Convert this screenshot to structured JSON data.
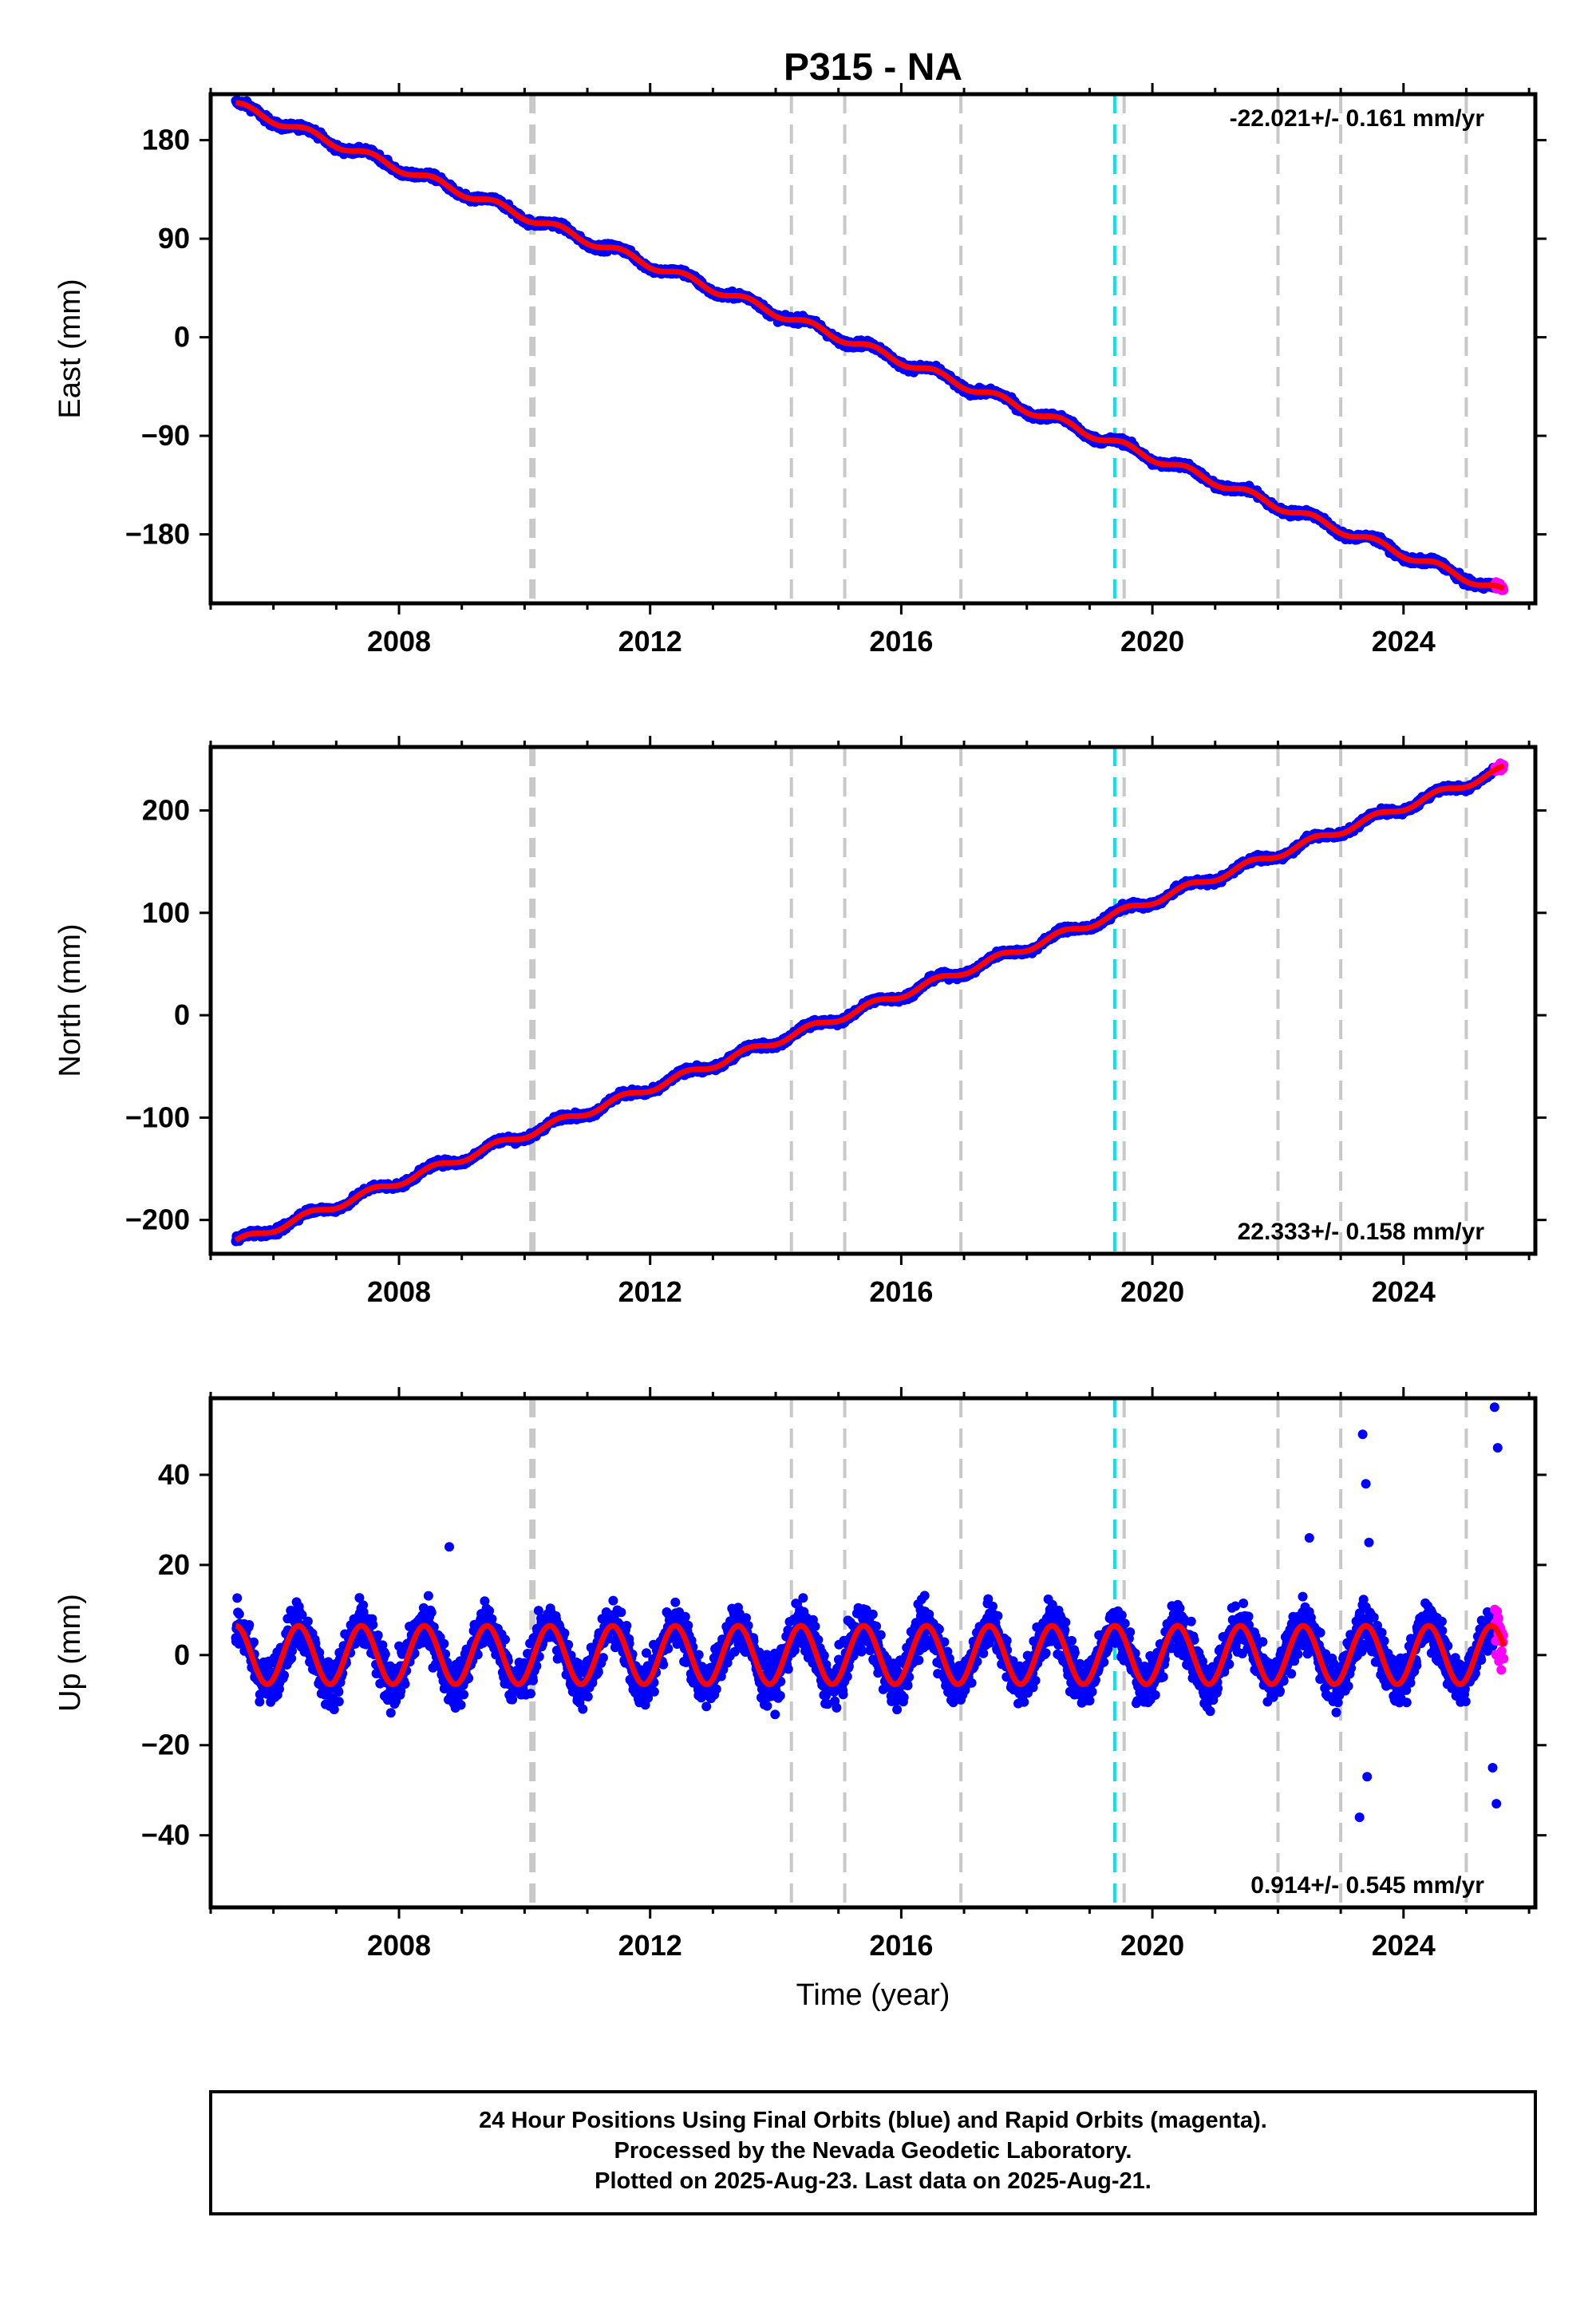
{
  "title": "P315 - NA",
  "chart_data": [
    {
      "type": "scatter",
      "component": "east",
      "ylabel": "East (mm)",
      "xlabel": "",
      "xlim": [
        2005.0,
        2026.1
      ],
      "ylim": [
        -243,
        222
      ],
      "xticks": [
        2008,
        2012,
        2016,
        2020,
        2024
      ],
      "yticks": [
        180,
        90,
        0,
        -90,
        -180
      ],
      "ytick_labels": [
        "180",
        "90",
        "0",
        "−90",
        "−180"
      ],
      "rate_text": "-22.021+/- 0.161 mm/yr",
      "rate_position": "top-right",
      "model": {
        "start_year": 2005.4,
        "start_value": 212,
        "end_year": 2025.6,
        "end_value": -233,
        "rate_mm_per_yr": -22.021
      },
      "equipment_changes": [
        2010.1,
        2010.15,
        2014.25,
        2015.1,
        2016.95,
        2019.55,
        2022.0,
        2023.0,
        2025.0
      ],
      "earthquakes": [
        2019.4
      ]
    },
    {
      "type": "scatter",
      "component": "north",
      "ylabel": "North (mm)",
      "xlabel": "",
      "xlim": [
        2005.0,
        2026.1
      ],
      "ylim": [
        -233,
        262
      ],
      "xticks": [
        2008,
        2012,
        2016,
        2020,
        2024
      ],
      "yticks": [
        200,
        100,
        0,
        -100,
        -200
      ],
      "ytick_labels": [
        "200",
        "100",
        "0",
        "−100",
        "−200"
      ],
      "rate_text": "22.333+/- 0.158 mm/yr",
      "rate_position": "bottom-right",
      "model": {
        "start_year": 2005.4,
        "start_value": -222,
        "end_year": 2025.6,
        "end_value": 240,
        "rate_mm_per_yr": 22.333
      },
      "equipment_changes": [
        2010.1,
        2010.15,
        2014.25,
        2015.1,
        2016.95,
        2019.55,
        2022.0,
        2023.0,
        2025.0
      ],
      "earthquakes": [
        2019.4
      ]
    },
    {
      "type": "scatter",
      "component": "up",
      "ylabel": "Up (mm)",
      "xlabel": "Time (year)",
      "xlim": [
        2005.0,
        2026.1
      ],
      "ylim": [
        -56,
        57
      ],
      "xticks": [
        2008,
        2012,
        2016,
        2020,
        2024
      ],
      "yticks": [
        40,
        20,
        0,
        -20,
        -40
      ],
      "ytick_labels": [
        "40",
        "20",
        "0",
        "−20",
        "−40"
      ],
      "rate_text": "0.914+/- 0.545 mm/yr",
      "rate_position": "bottom-right",
      "model": {
        "start_year": 2005.4,
        "start_value": 0,
        "end_year": 2025.6,
        "end_value": 0,
        "rate_mm_per_yr": 0.914,
        "seasonal_amplitude_mm": 6.5
      },
      "equipment_changes": [
        2010.1,
        2010.15,
        2014.25,
        2015.1,
        2016.95,
        2019.55,
        2022.0,
        2023.0,
        2025.0
      ],
      "earthquakes": [
        2019.4
      ]
    }
  ],
  "legend": {
    "final_orbits_color": "#0000ff",
    "rapid_orbits_color": "#ff00ff",
    "model_color": "#ff0000",
    "equipment_change_color": "#c8c8c8",
    "earthquake_color": "#00e5ee"
  },
  "footer": {
    "line1": "24 Hour Positions Using Final Orbits (blue) and Rapid Orbits (magenta).",
    "line2": "Processed by the Nevada Geodetic Laboratory.",
    "line3": "Plotted on 2025-Aug-23. Last data on 2025-Aug-21."
  }
}
